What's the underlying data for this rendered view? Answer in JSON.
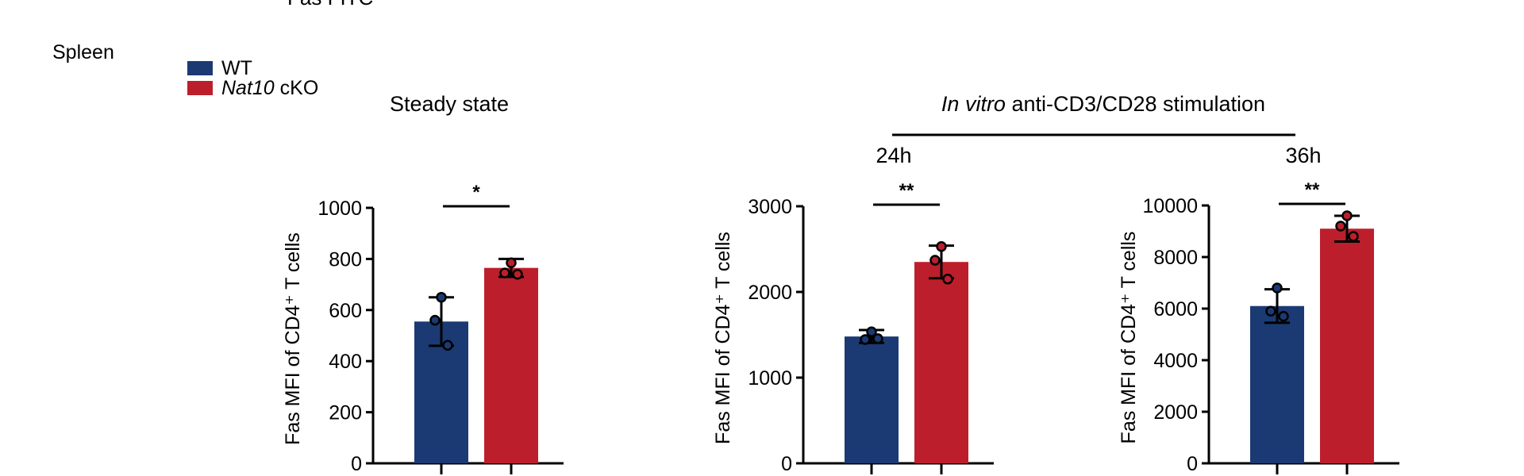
{
  "header_fragment": "Fas FITC",
  "tissue_label": "Spleen",
  "legend": [
    {
      "label_italic": "",
      "label": "WT",
      "color": "#1b3a73"
    },
    {
      "label_italic": "Nat10",
      "label": " cKO",
      "color": "#bc1f2b"
    }
  ],
  "stimulation": {
    "label_italic": "In vitro",
    "label": " anti-CD3/CD28 stimulation"
  },
  "chart_data": [
    {
      "type": "bar",
      "panel_title": "Steady state",
      "ylabel": "Fas MFI of CD4⁺ T cells",
      "ylim": [
        0,
        1000
      ],
      "yticks": [
        0,
        200,
        400,
        600,
        800,
        1000
      ],
      "categories": [
        "WT",
        "Nat10 cKO"
      ],
      "values": [
        555,
        765
      ],
      "errors": [
        95,
        35
      ],
      "points": [
        [
          650,
          560,
          462
        ],
        [
          785,
          745,
          740
        ]
      ],
      "significance": "*"
    },
    {
      "type": "bar",
      "panel_title": "24h",
      "ylabel": "Fas MFI of CD4⁺ T cells",
      "ylim": [
        0,
        3000
      ],
      "yticks": [
        0,
        1000,
        2000,
        3000
      ],
      "categories": [
        "WT",
        "Nat10 cKO"
      ],
      "values": [
        1480,
        2350
      ],
      "errors": [
        75,
        190
      ],
      "points": [
        [
          1535,
          1445,
          1455
        ],
        [
          2530,
          2370,
          2150
        ]
      ],
      "significance": "**"
    },
    {
      "type": "bar",
      "panel_title": "36h",
      "ylabel": "Fas MFI of CD4⁺ T cells",
      "ylim": [
        0,
        10000
      ],
      "yticks": [
        0,
        2000,
        4000,
        6000,
        8000,
        10000
      ],
      "categories": [
        "WT",
        "Nat10 cKO"
      ],
      "values": [
        6100,
        9100
      ],
      "errors": [
        650,
        500
      ],
      "points": [
        [
          6800,
          5900,
          5700
        ],
        [
          9600,
          9200,
          8800
        ]
      ],
      "significance": "**"
    }
  ]
}
